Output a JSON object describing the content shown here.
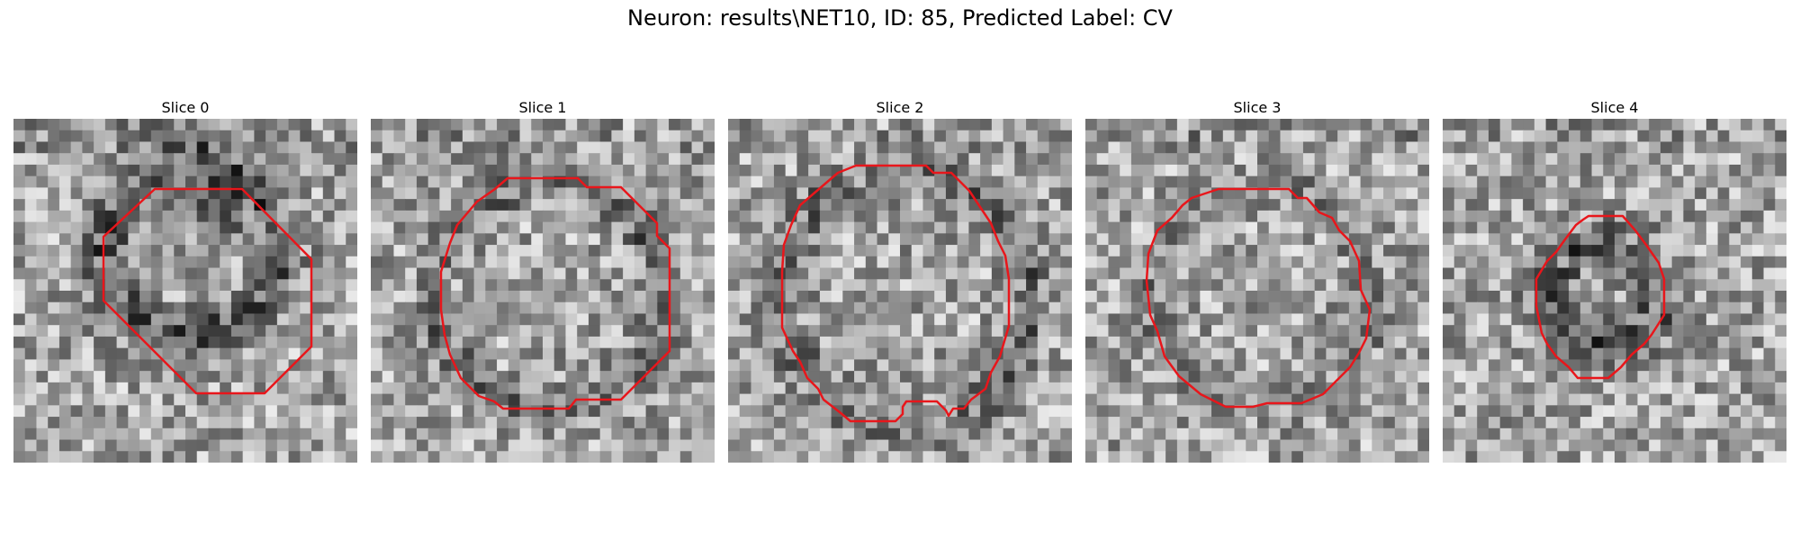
{
  "figure": {
    "title": "Neuron: results\\NET10, ID: 85, Predicted Label: CV"
  },
  "panels": [
    {
      "title": "Slice 0"
    },
    {
      "title": "Slice 1"
    },
    {
      "title": "Slice 2"
    },
    {
      "title": "Slice 3"
    },
    {
      "title": "Slice 4"
    }
  ],
  "colors": {
    "contour": "#e8161b",
    "background": "#ffffff"
  }
}
